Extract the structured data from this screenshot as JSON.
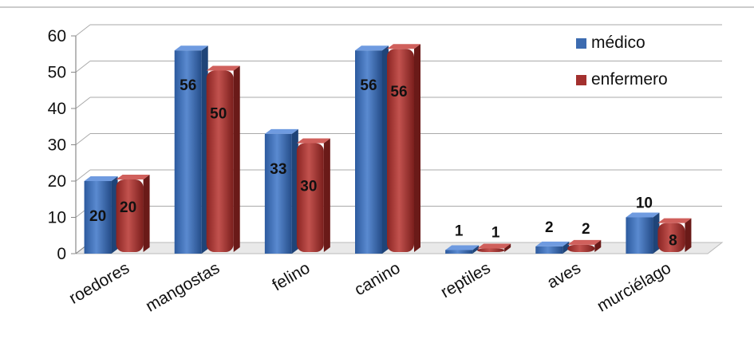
{
  "chart_data": {
    "type": "bar",
    "categories": [
      "roedores",
      "mangostas",
      "felino",
      "canino",
      "reptiles",
      "aves",
      "murciélago"
    ],
    "series": [
      {
        "name": "médico",
        "values": [
          20,
          56,
          33,
          56,
          1,
          2,
          10
        ],
        "color": "#3c6bb0"
      },
      {
        "name": "enfermero",
        "values": [
          20,
          50,
          30,
          56,
          1,
          2,
          8
        ],
        "color": "#a3302e"
      }
    ],
    "yticks": [
      "0",
      "10",
      "20",
      "30",
      "40",
      "50",
      "60"
    ],
    "ylim": [
      0,
      60
    ],
    "grid": true,
    "legend": "top-right",
    "style": "3d-cylinder"
  }
}
